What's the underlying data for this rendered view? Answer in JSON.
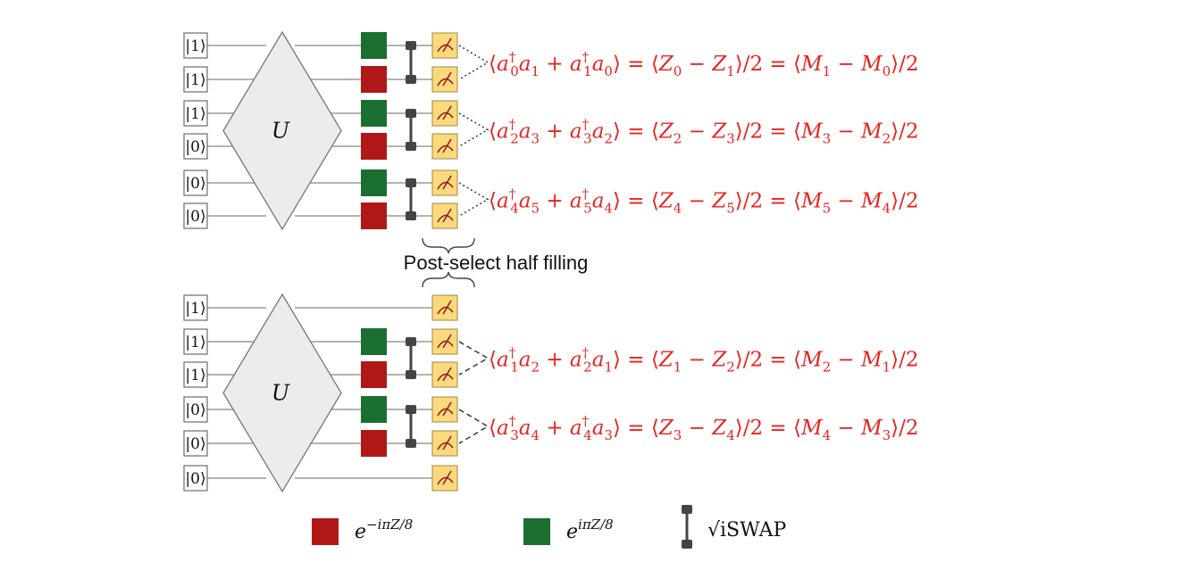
{
  "diagram": {
    "circuit_top": {
      "kets": [
        "|1⟩",
        "|1⟩",
        "|1⟩",
        "|0⟩",
        "|0⟩",
        "|0⟩"
      ],
      "unitary_label": "U",
      "equations": [
        {
          "lhs_a": "a",
          "s0": "0",
          "s1": "1",
          "s2": "1",
          "s3": "0",
          "z_a": "0",
          "z_b": "1",
          "m_a": "1",
          "m_b": "0"
        },
        {
          "lhs_a": "a",
          "s0": "2",
          "s1": "3",
          "s2": "3",
          "s3": "2",
          "z_a": "2",
          "z_b": "3",
          "m_a": "3",
          "m_b": "2"
        },
        {
          "lhs_a": "a",
          "s0": "4",
          "s1": "5",
          "s2": "5",
          "s3": "4",
          "z_a": "4",
          "z_b": "5",
          "m_a": "5",
          "m_b": "4"
        }
      ]
    },
    "post_select_label": "Post-select half filling",
    "circuit_bottom": {
      "kets": [
        "|1⟩",
        "|1⟩",
        "|1⟩",
        "|0⟩",
        "|0⟩",
        "|0⟩"
      ],
      "unitary_label": "U",
      "equations": [
        {
          "lhs_a": "a",
          "s0": "1",
          "s1": "2",
          "s2": "2",
          "s3": "1",
          "z_a": "1",
          "z_b": "2",
          "m_a": "2",
          "m_b": "1"
        },
        {
          "lhs_a": "a",
          "s0": "3",
          "s1": "4",
          "s2": "4",
          "s3": "3",
          "z_a": "3",
          "z_b": "4",
          "m_a": "4",
          "m_b": "3"
        }
      ]
    },
    "legend": {
      "red_label": "e",
      "red_exponent": "−iπZ/8",
      "green_label": "e",
      "green_exponent": "iπZ/8",
      "iswap_label": "√iSWAP"
    },
    "colors": {
      "red_gate": "#b01818",
      "green_gate": "#1a6e30",
      "meter": "#fcd97c",
      "equation": "#e8231f",
      "unitary_fill": "#ececec"
    }
  }
}
